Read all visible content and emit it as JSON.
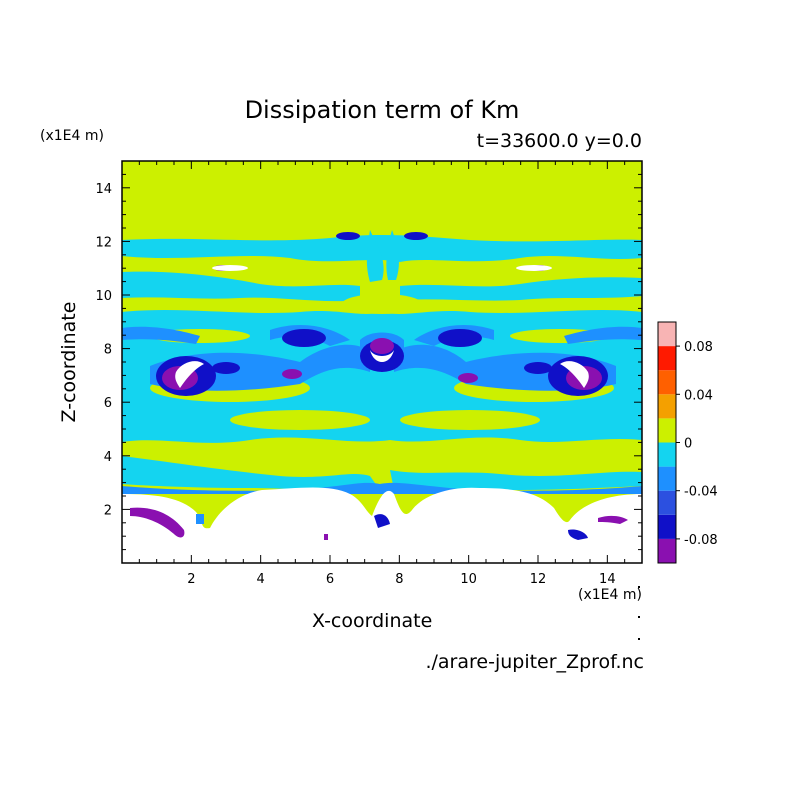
{
  "chart_data": {
    "type": "heatmap",
    "title": "Dissipation term of Km",
    "subtitle": "t=33600.0 y=0.0",
    "xlabel": "X-coordinate",
    "ylabel": "Z-coordinate",
    "x_unit": "(x1E4 m)",
    "y_unit": "(x1E4 m)",
    "xlim": [
      0,
      15
    ],
    "ylim": [
      0,
      15
    ],
    "x_ticks": [
      "2",
      "4",
      "6",
      "8",
      "10",
      "12",
      "14"
    ],
    "y_ticks": [
      "2",
      "4",
      "6",
      "8",
      "10",
      "12",
      "14"
    ],
    "source_file": "./arare-jupiter_Zprof.nc",
    "colorbar": {
      "levels": [
        -0.1,
        -0.08,
        -0.06,
        -0.04,
        -0.02,
        0,
        0.02,
        0.04,
        0.06,
        0.08,
        0.1
      ],
      "colors": [
        "#8a10b0",
        "#1010c8",
        "#2c50e0",
        "#1e90ff",
        "#14d4f0",
        "#ccf000",
        "#f4a000",
        "#ff6000",
        "#ff1a00",
        "#f8b4b4"
      ],
      "tick_labels": [
        "-0.08",
        "-0.04",
        "0",
        "0.04",
        "0.08"
      ],
      "tick_values": [
        -0.08,
        -0.04,
        0,
        0.04,
        0.08
      ]
    },
    "regions": {
      "background_value": 0.01,
      "top_zero_band_from": 12.2,
      "below_ground_value_mask_top": 3.0
    }
  }
}
